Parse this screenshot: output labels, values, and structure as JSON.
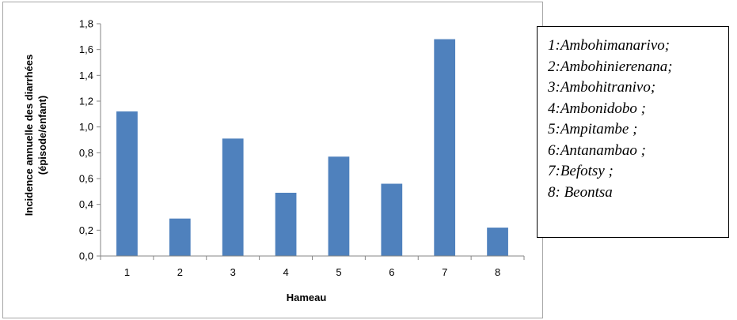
{
  "chart_data": {
    "type": "bar",
    "categories": [
      "1",
      "2",
      "3",
      "4",
      "5",
      "6",
      "7",
      "8"
    ],
    "values": [
      1.12,
      0.29,
      0.91,
      0.49,
      0.77,
      0.56,
      1.68,
      0.22
    ],
    "xlabel": "Hameau",
    "ylabel_line1": "Incidence annuelle des diarrhées",
    "ylabel_line2": "(épisode/enfant)",
    "ylim": [
      0,
      1.8
    ],
    "yticks": [
      "0,0",
      "0,2",
      "0,4",
      "0,6",
      "0,8",
      "1,0",
      "1,2",
      "1,4",
      "1,6",
      "1,8"
    ],
    "bar_color": "#4f81bd",
    "grid": false
  },
  "legend": [
    "1:Ambohimanarivo;",
    "2:Ambohinierenana;",
    "3:Ambohitranivo;",
    "4:Ambonidobo ;",
    "5:Ampitambe ;",
    "6:Antanambao ;",
    "7:Befotsy ;",
    "8: Beontsa"
  ]
}
